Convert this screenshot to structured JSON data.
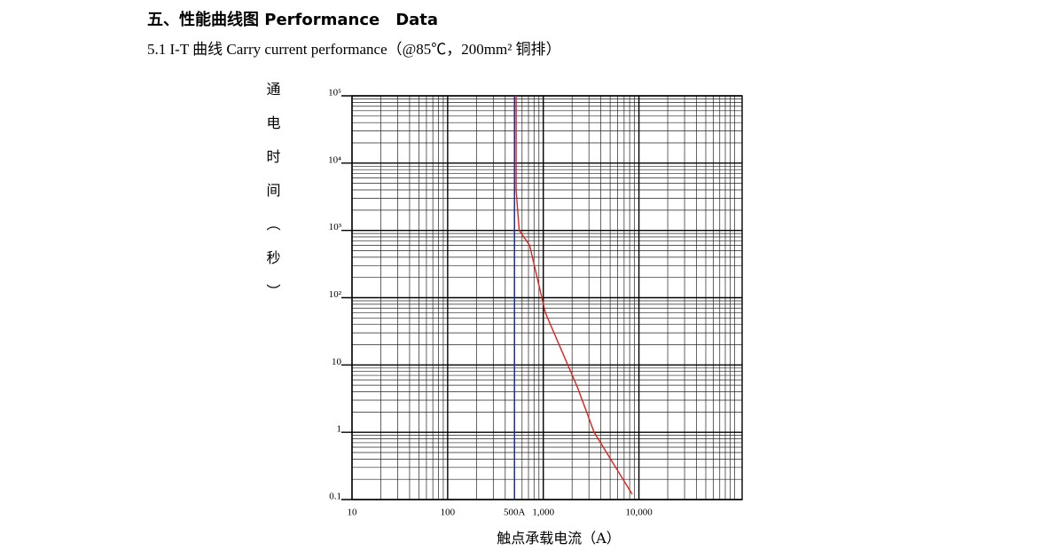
{
  "chart_data": {
    "type": "line",
    "title": "五、性能曲线图  Performance　Data",
    "subtitle": "5.1 I-T 曲线 Carry current performance（@85℃，200mm² 铜排）",
    "x_label": "触点承载电流（A）",
    "y_label": "通电时间（秒）",
    "log_x": true,
    "log_y": true,
    "grid": true,
    "xlim": [
      10,
      120000
    ],
    "ylim": [
      0.1,
      100000
    ],
    "xticks": [
      10,
      100,
      {
        "value": 500,
        "label": "500A"
      },
      {
        "value": 1000,
        "label": "1,000"
      },
      {
        "value": 10000,
        "label": "10,000"
      }
    ],
    "yticks": [
      {
        "value": 100000,
        "label": "10⁵"
      },
      {
        "value": 10000,
        "label": "10⁴"
      },
      {
        "value": 1000,
        "label": "10³"
      },
      {
        "value": 100,
        "label": "10²"
      },
      10,
      1,
      0.1
    ],
    "series": [
      {
        "color": "#1a2fb0",
        "x": [
          500,
          500
        ],
        "values": [
          100000,
          0.1
        ]
      },
      {
        "color": "#e0201a",
        "x": [
          520,
          520,
          560,
          720,
          1050,
          2300,
          3400,
          8500
        ],
        "values": [
          100000,
          4000,
          1000,
          600,
          60,
          4.5,
          1,
          0.12
        ]
      }
    ]
  }
}
